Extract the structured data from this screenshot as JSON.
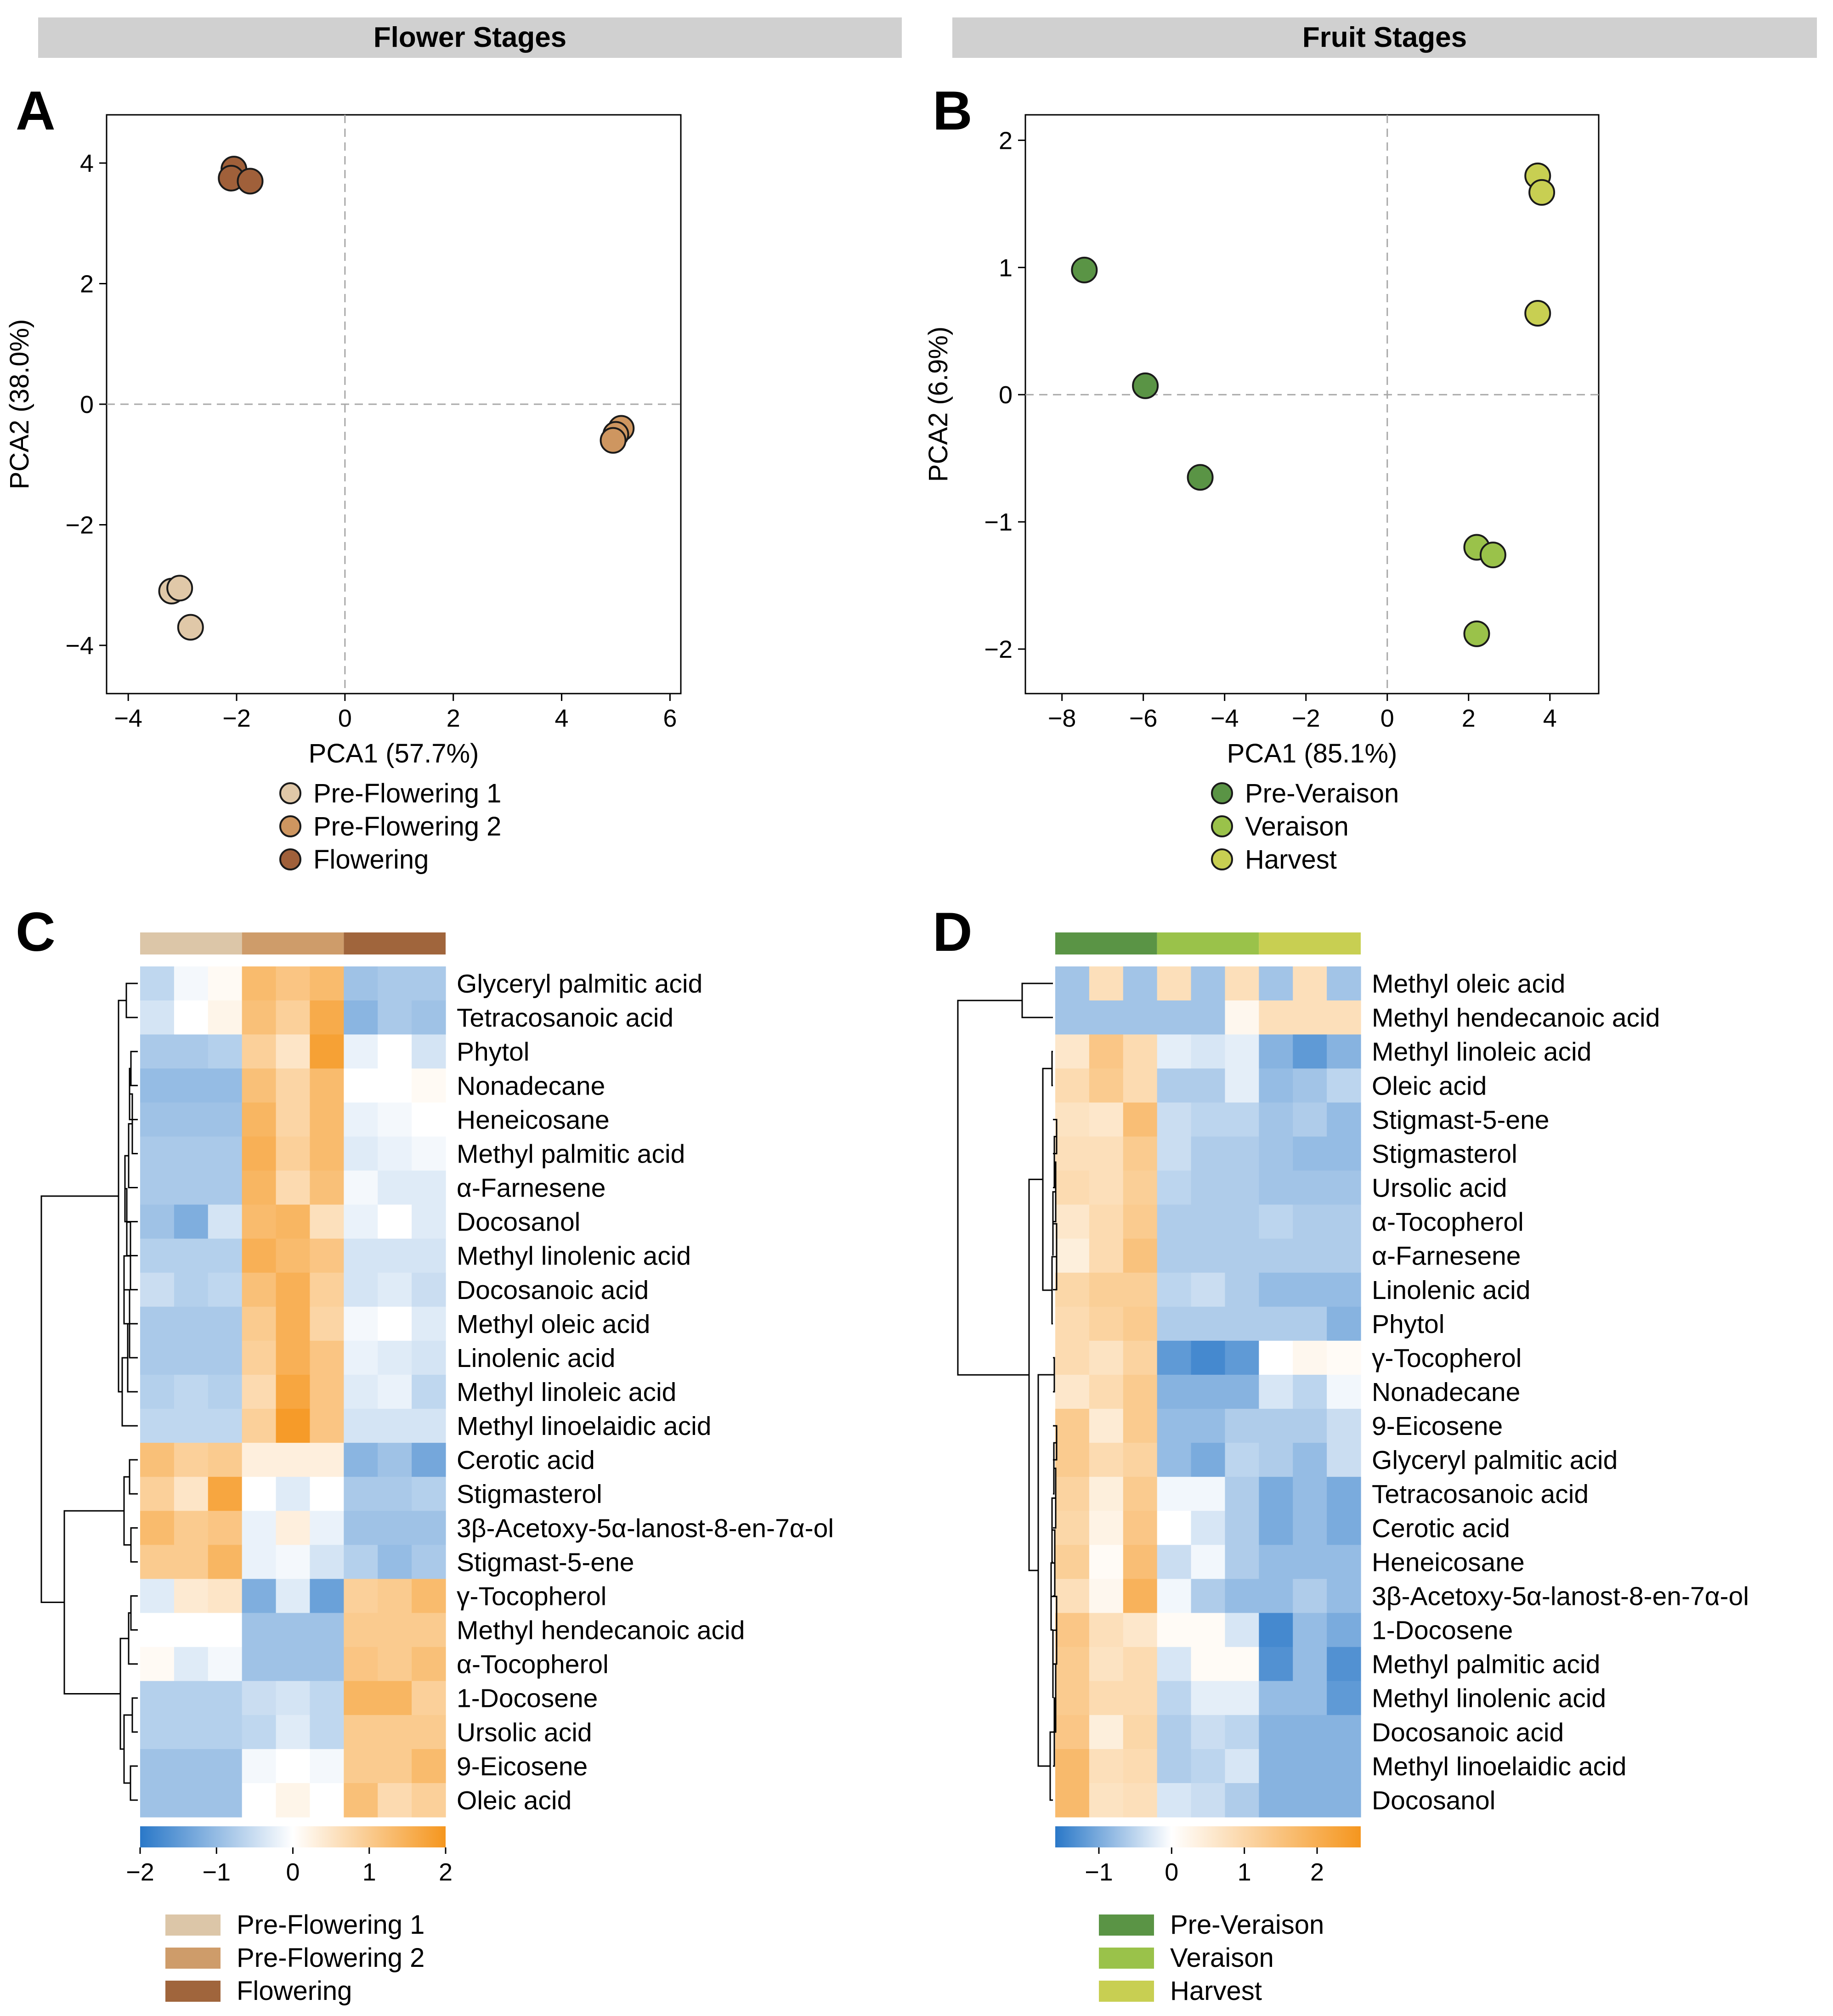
{
  "panels": {
    "strip_flower": "Flower Stages",
    "strip_fruit": "Fruit Stages",
    "A": "A",
    "B": "B",
    "C": "C",
    "D": "D"
  },
  "chart_data": [
    {
      "id": "A",
      "type": "scatter",
      "strip": "Flower Stages",
      "xlabel": "PCA1 (57.7%)",
      "ylabel": "PCA2 (38.0%)",
      "xlim": [
        -4.4,
        6.2
      ],
      "ylim": [
        -4.8,
        4.8
      ],
      "xticks": [
        -4,
        -2,
        0,
        2,
        4,
        6
      ],
      "yticks": [
        -4,
        -2,
        0,
        2,
        4
      ],
      "reference_lines": {
        "x": 0,
        "y": 0
      },
      "series": [
        {
          "name": "Pre-Flowering 1",
          "color": "#E0C8A8",
          "points": [
            [
              -3.2,
              -3.1
            ],
            [
              -3.05,
              -3.05
            ],
            [
              -2.85,
              -3.7
            ]
          ]
        },
        {
          "name": "Pre-Flowering 2",
          "color": "#CE9660",
          "points": [
            [
              5.1,
              -0.4
            ],
            [
              5.0,
              -0.5
            ],
            [
              4.95,
              -0.6
            ]
          ]
        },
        {
          "name": "Flowering",
          "color": "#A0603A",
          "points": [
            [
              -2.05,
              3.9
            ],
            [
              -2.1,
              3.75
            ],
            [
              -1.75,
              3.7
            ]
          ]
        }
      ],
      "legend": [
        "Pre-Flowering 1",
        "Pre-Flowering 2",
        "Flowering"
      ]
    },
    {
      "id": "B",
      "type": "scatter",
      "strip": "Fruit Stages",
      "xlabel": "PCA1 (85.1%)",
      "ylabel": "PCA2 (6.9%)",
      "xlim": [
        -8.9,
        5.2
      ],
      "ylim": [
        -2.35,
        2.2
      ],
      "xticks": [
        -8,
        -6,
        -4,
        -2,
        0,
        2,
        4
      ],
      "yticks": [
        -2,
        -1,
        0,
        1,
        2
      ],
      "reference_lines": {
        "x": 0,
        "y": 0
      },
      "series": [
        {
          "name": "Pre-Veraison",
          "color": "#5A9445",
          "points": [
            [
              -7.45,
              0.98
            ],
            [
              -5.95,
              0.07
            ],
            [
              -4.6,
              -0.65
            ]
          ]
        },
        {
          "name": "Veraison",
          "color": "#9AC24A",
          "points": [
            [
              2.2,
              -1.2
            ],
            [
              2.6,
              -1.26
            ],
            [
              2.2,
              -1.88
            ]
          ]
        },
        {
          "name": "Harvest",
          "color": "#C8CF52",
          "points": [
            [
              3.7,
              1.72
            ],
            [
              3.8,
              1.59
            ],
            [
              3.7,
              0.64
            ]
          ]
        }
      ],
      "legend": [
        "Pre-Veraison",
        "Veraison",
        "Harvest"
      ]
    },
    {
      "id": "C",
      "type": "heatmap",
      "rows": [
        "Glyceryl palmitic acid",
        "Tetracosanoic acid",
        "Phytol",
        "Nonadecane",
        "Heneicosane",
        "Methyl palmitic acid",
        "α-Farnesene",
        "Docosanol",
        "Methyl linolenic acid",
        "Docosanoic acid",
        "Methyl oleic acid",
        "Linolenic acid",
        "Methyl linoleic acid",
        "Methyl linoelaidic acid",
        "Cerotic acid",
        "Stigmasterol",
        "3β-Acetoxy-5α-lanost-8-en-7α-ol",
        "Stigmast-5-ene",
        "γ-Tocopherol",
        "Methyl hendecanoic acid",
        "α-Tocopherol",
        "1-Docosene",
        "Ursolic acid",
        "9-Eicosene",
        "Oleic acid"
      ],
      "column_groups": [
        "Pre-Flowering 1",
        "Pre-Flowering 2",
        "Flowering"
      ],
      "group_colors": [
        "#DCC6A8",
        "#CE9C6A",
        "#A0653C"
      ],
      "values": [
        [
          -0.6,
          -0.1,
          0.1,
          1.3,
          1.1,
          1.3,
          -0.9,
          -0.8,
          -0.8
        ],
        [
          -0.4,
          0.0,
          0.2,
          1.2,
          0.9,
          1.6,
          -1.1,
          -0.8,
          -0.9
        ],
        [
          -0.8,
          -0.8,
          -0.7,
          0.9,
          0.5,
          1.8,
          -0.2,
          0.0,
          -0.4
        ],
        [
          -1.0,
          -1.0,
          -1.0,
          1.2,
          0.8,
          1.3,
          0.0,
          0.0,
          0.1
        ],
        [
          -0.9,
          -0.9,
          -0.9,
          1.4,
          0.8,
          1.3,
          -0.2,
          -0.1,
          0.0
        ],
        [
          -0.8,
          -0.8,
          -0.8,
          1.5,
          0.9,
          1.3,
          -0.3,
          -0.2,
          -0.1
        ],
        [
          -0.8,
          -0.8,
          -0.8,
          1.4,
          0.7,
          1.2,
          -0.1,
          -0.3,
          -0.3
        ],
        [
          -0.9,
          -1.2,
          -0.4,
          1.3,
          1.4,
          0.6,
          -0.2,
          0.0,
          -0.3
        ],
        [
          -0.7,
          -0.7,
          -0.7,
          1.5,
          1.3,
          1.1,
          -0.4,
          -0.4,
          -0.4
        ],
        [
          -0.5,
          -0.7,
          -0.6,
          1.2,
          1.5,
          0.9,
          -0.4,
          -0.3,
          -0.5
        ],
        [
          -0.8,
          -0.8,
          -0.8,
          1.0,
          1.5,
          0.8,
          -0.1,
          0.0,
          -0.3
        ],
        [
          -0.8,
          -0.8,
          -0.8,
          0.9,
          1.5,
          1.1,
          -0.2,
          -0.3,
          -0.4
        ],
        [
          -0.7,
          -0.6,
          -0.7,
          0.7,
          1.7,
          1.1,
          -0.3,
          -0.2,
          -0.6
        ],
        [
          -0.6,
          -0.6,
          -0.6,
          0.9,
          1.9,
          1.1,
          -0.4,
          -0.4,
          -0.4
        ],
        [
          1.2,
          0.9,
          1.0,
          0.3,
          0.3,
          0.3,
          -1.1,
          -0.9,
          -1.3
        ],
        [
          0.9,
          0.5,
          1.7,
          0.0,
          -0.3,
          0.0,
          -0.8,
          -0.8,
          -0.7
        ],
        [
          1.3,
          1.0,
          1.1,
          -0.2,
          0.3,
          -0.2,
          -0.9,
          -0.9,
          -0.9
        ],
        [
          1.0,
          1.0,
          1.4,
          -0.2,
          -0.1,
          -0.4,
          -0.7,
          -1.0,
          -0.8
        ],
        [
          -0.3,
          0.4,
          0.5,
          -1.2,
          -0.3,
          -1.4,
          0.9,
          1.0,
          1.3
        ],
        [
          0.0,
          0.0,
          0.0,
          -0.9,
          -0.9,
          -0.9,
          1.0,
          1.0,
          1.0
        ],
        [
          0.1,
          -0.3,
          -0.1,
          -0.9,
          -0.9,
          -0.9,
          1.1,
          1.0,
          1.2
        ],
        [
          -0.7,
          -0.7,
          -0.7,
          -0.5,
          -0.4,
          -0.6,
          1.4,
          1.4,
          0.9
        ],
        [
          -0.7,
          -0.7,
          -0.7,
          -0.6,
          -0.3,
          -0.6,
          1.0,
          1.0,
          1.0
        ],
        [
          -0.9,
          -0.9,
          -0.9,
          -0.1,
          0.0,
          -0.1,
          1.0,
          1.0,
          1.3
        ],
        [
          -0.9,
          -0.9,
          -0.9,
          0.0,
          0.2,
          0.0,
          1.2,
          0.7,
          0.9
        ]
      ],
      "color_scale": {
        "min": -2,
        "max": 2,
        "low": "#2A78C8",
        "mid": "#FFFFFF",
        "high": "#F5961E",
        "ticks": [
          -2,
          -1,
          0,
          1,
          2
        ]
      },
      "legend": [
        "Pre-Flowering 1",
        "Pre-Flowering 2",
        "Flowering"
      ]
    },
    {
      "id": "D",
      "type": "heatmap",
      "rows": [
        "Methyl oleic acid",
        "Methyl hendecanoic acid",
        "Methyl linoleic acid",
        "Oleic acid",
        "Stigmast-5-ene",
        "Stigmasterol",
        "Ursolic acid",
        "α-Tocopherol",
        "α-Farnesene",
        "Linolenic acid",
        "Phytol",
        "γ-Tocopherol",
        "Nonadecane",
        "9-Eicosene",
        "Glyceryl palmitic acid",
        "Tetracosanoic acid",
        "Cerotic acid",
        "Heneicosane",
        "3β-Acetoxy-5α-lanost-8-en-7α-ol",
        "1-Docosene",
        "Methyl palmitic acid",
        "Methyl linolenic acid",
        "Docosanoic acid",
        "Methyl linoelaidic acid",
        "Docosanol"
      ],
      "column_groups": [
        "Pre-Veraison",
        "Veraison",
        "Harvest"
      ],
      "group_colors": [
        "#5A9445",
        "#9AC24A",
        "#C8CF52"
      ],
      "values": [
        [
          -0.7,
          0.8,
          -0.7,
          0.8,
          -0.7,
          0.8,
          -0.7,
          0.8,
          -0.7
        ],
        [
          -0.7,
          -0.7,
          -0.7,
          -0.7,
          -0.7,
          0.2,
          0.8,
          0.8,
          0.8
        ],
        [
          0.6,
          1.4,
          0.9,
          -0.2,
          -0.3,
          -0.2,
          -0.9,
          -1.2,
          -0.9
        ],
        [
          0.9,
          1.3,
          0.9,
          -0.6,
          -0.6,
          -0.2,
          -0.8,
          -0.7,
          -0.5
        ],
        [
          0.7,
          0.6,
          1.6,
          -0.4,
          -0.5,
          -0.5,
          -0.7,
          -0.6,
          -0.8
        ],
        [
          0.8,
          0.8,
          1.3,
          -0.4,
          -0.6,
          -0.6,
          -0.7,
          -0.8,
          -0.8
        ],
        [
          0.9,
          0.8,
          1.2,
          -0.5,
          -0.6,
          -0.6,
          -0.7,
          -0.7,
          -0.7
        ],
        [
          0.6,
          0.9,
          1.3,
          -0.6,
          -0.6,
          -0.6,
          -0.5,
          -0.6,
          -0.6
        ],
        [
          0.4,
          0.9,
          1.5,
          -0.6,
          -0.6,
          -0.6,
          -0.6,
          -0.6,
          -0.6
        ],
        [
          1.0,
          1.2,
          1.2,
          -0.5,
          -0.4,
          -0.6,
          -0.8,
          -0.8,
          -0.8
        ],
        [
          0.9,
          1.1,
          1.3,
          -0.6,
          -0.6,
          -0.6,
          -0.6,
          -0.6,
          -0.9
        ],
        [
          0.9,
          0.7,
          1.1,
          -1.2,
          -1.4,
          -1.2,
          0.0,
          0.2,
          0.1
        ],
        [
          0.6,
          0.9,
          1.3,
          -0.9,
          -0.9,
          -0.9,
          -0.3,
          -0.5,
          -0.1
        ],
        [
          1.3,
          0.5,
          1.3,
          -0.8,
          -0.8,
          -0.6,
          -0.6,
          -0.6,
          -0.4
        ],
        [
          1.3,
          0.9,
          1.1,
          -0.8,
          -1.0,
          -0.5,
          -0.6,
          -0.8,
          -0.4
        ],
        [
          1.1,
          0.4,
          1.3,
          -0.1,
          -0.1,
          -0.6,
          -1.0,
          -0.8,
          -1.0
        ],
        [
          1.0,
          0.3,
          1.4,
          0.0,
          -0.3,
          -0.6,
          -1.0,
          -0.8,
          -1.0
        ],
        [
          1.2,
          0.1,
          1.6,
          -0.4,
          -0.1,
          -0.6,
          -0.8,
          -0.8,
          -0.8
        ],
        [
          0.8,
          0.2,
          1.9,
          -0.1,
          -0.6,
          -0.8,
          -0.8,
          -0.6,
          -0.8
        ],
        [
          1.4,
          0.8,
          0.6,
          0.1,
          0.1,
          -0.3,
          -1.4,
          -0.8,
          -1.0
        ],
        [
          1.3,
          0.7,
          0.9,
          -0.3,
          0.1,
          0.1,
          -1.3,
          -0.8,
          -1.3
        ],
        [
          1.3,
          0.9,
          0.9,
          -0.5,
          -0.2,
          -0.2,
          -0.8,
          -0.8,
          -1.2
        ],
        [
          1.4,
          0.4,
          1.0,
          -0.6,
          -0.4,
          -0.5,
          -0.9,
          -0.9,
          -0.9
        ],
        [
          1.7,
          0.8,
          0.9,
          -0.6,
          -0.5,
          -0.3,
          -0.9,
          -0.9,
          -0.9
        ],
        [
          1.7,
          0.7,
          0.8,
          -0.3,
          -0.4,
          -0.6,
          -0.9,
          -0.9,
          -0.9
        ]
      ],
      "color_scale": {
        "min": -1.6,
        "max": 2.6,
        "low": "#2A78C8",
        "mid": "#FFFFFF",
        "high": "#F5961E",
        "ticks": [
          -1,
          0,
          1,
          2
        ]
      },
      "legend": [
        "Pre-Veraison",
        "Veraison",
        "Harvest"
      ]
    }
  ]
}
